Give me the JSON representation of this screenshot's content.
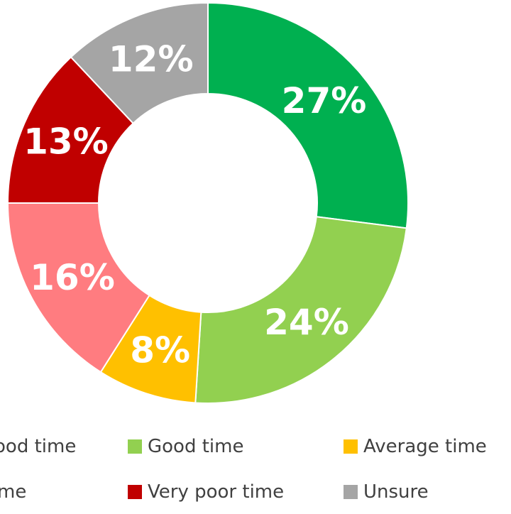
{
  "chart_data": {
    "type": "pie",
    "variant": "donut",
    "title": "",
    "categories": [
      "Very good time",
      "Good time",
      "Average time",
      "Poor time",
      "Very poor time",
      "Unsure"
    ],
    "values": [
      27,
      24,
      8,
      16,
      13,
      12
    ],
    "labels": [
      "27%",
      "24%",
      "8%",
      "16%",
      "13%",
      "12%"
    ],
    "colors": [
      "#00B050",
      "#92D050",
      "#FFC000",
      "#FF7C80",
      "#C00000",
      "#A5A5A5"
    ],
    "legend_position": "bottom",
    "legend_visible_text": [
      "ood time",
      "Good time",
      "Average time",
      "me",
      "Very poor time",
      "Unsure"
    ]
  }
}
